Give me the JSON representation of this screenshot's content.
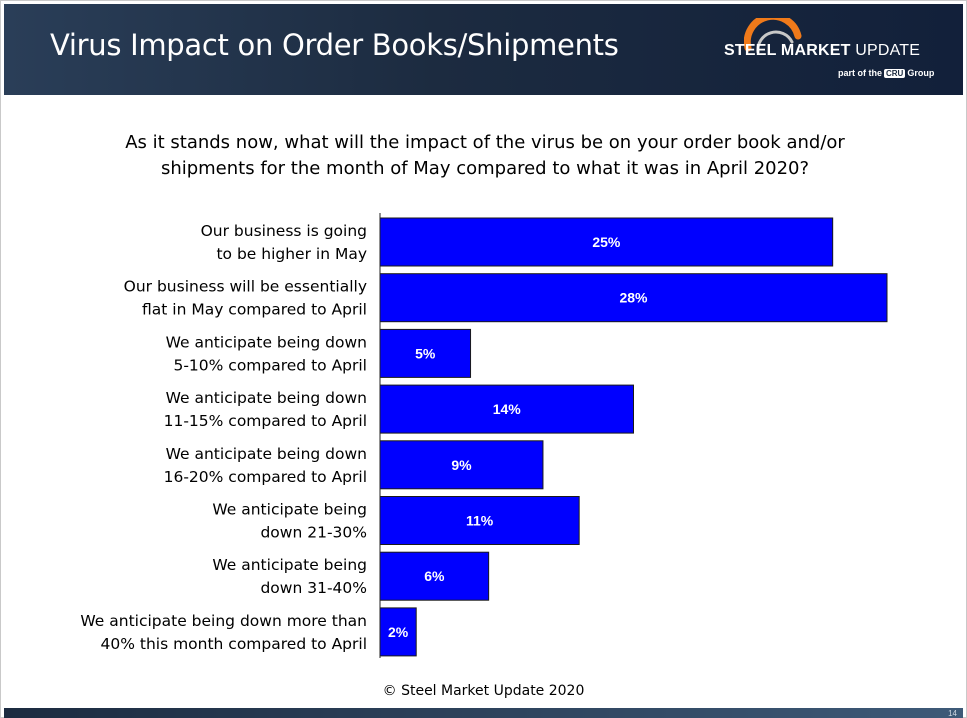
{
  "header": {
    "title": "Virus Impact on Order Books/Shipments",
    "logo_main_bold": "STEEL MARKET",
    "logo_main_light": "UPDATE",
    "logo_sub_prefix": "part of the",
    "logo_sub_box": "CRU",
    "logo_sub_suffix": "Group"
  },
  "question": {
    "line1": "As it stands now, what will the impact of the virus be on your order book and/or",
    "line2": "shipments for the month of May compared to what it was in April 2020?"
  },
  "footer": {
    "copyright": "© Steel Market Update 2020",
    "page_number": "14"
  },
  "colors": {
    "bar": "#0000ff",
    "header_bg": "#1c2b40",
    "logo_orange": "#f07a1a"
  },
  "chart_data": {
    "type": "bar",
    "orientation": "horizontal",
    "categories": [
      [
        "Our business is going",
        "to be higher in May"
      ],
      [
        "Our business will be essentially",
        "flat in May compared to April"
      ],
      [
        "We anticipate being down",
        "5-10% compared to April"
      ],
      [
        "We anticipate being down",
        "11-15% compared to April"
      ],
      [
        "We anticipate being down",
        "16-20% compared to April"
      ],
      [
        "We anticipate being",
        "down 21-30%"
      ],
      [
        "We anticipate being",
        "down 31-40%"
      ],
      [
        "We anticipate being down more than",
        "40%  this month compared to April"
      ]
    ],
    "values": [
      25,
      28,
      5,
      14,
      9,
      11,
      6,
      2
    ],
    "data_labels": [
      "25%",
      "28%",
      "5%",
      "14%",
      "9%",
      "11%",
      "6%",
      "2%"
    ],
    "xlim": [
      0,
      28
    ],
    "grid": false,
    "legend": "none"
  }
}
